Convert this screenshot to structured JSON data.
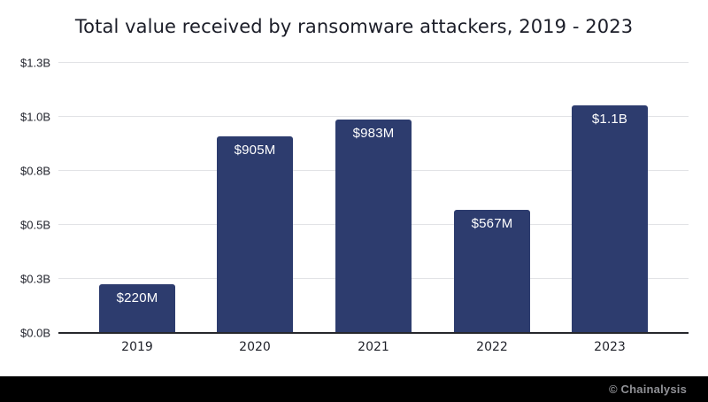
{
  "title": "Total value received by ransomware attackers, 2019 - 2023",
  "footer": {
    "credit": "© Chainalysis"
  },
  "colors": {
    "bar": "#2d3c6e",
    "bar_label_text": "#ffffff",
    "title_text": "#1b1d28",
    "tick_text": "#23252e",
    "gridline": "#e2e3e6",
    "axis_line": "#26272c",
    "background": "#ffffff",
    "footer_background": "#000000",
    "footer_text": "#8f9095"
  },
  "chart_data": {
    "type": "bar",
    "title": "Total value received by ransomware attackers, 2019 - 2023",
    "categories": [
      "2019",
      "2020",
      "2021",
      "2022",
      "2023"
    ],
    "values_millions": [
      220,
      905,
      983,
      567,
      1100
    ],
    "bar_labels": [
      "$220M",
      "$905M",
      "$983M",
      "$567M",
      "$1.1B"
    ],
    "plotted_millions": [
      220,
      905,
      983,
      567,
      1050
    ],
    "series_name": "Total value received by ransomware attackers (USD)",
    "xlabel": "",
    "ylabel": "",
    "y_axis": {
      "ticks_millions": [
        0,
        250,
        500,
        750,
        1000,
        1250
      ],
      "tick_labels": [
        "$0.0B",
        "$0.3B",
        "$0.5B",
        "$0.8B",
        "$1.0B",
        "$1.3B"
      ],
      "max_millions": 1250
    },
    "grid": "horizontal",
    "legend_position": "none",
    "value_labels_position": "inside-top"
  }
}
